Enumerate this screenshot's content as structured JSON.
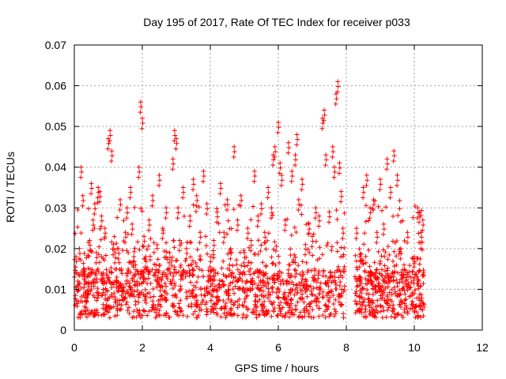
{
  "chart_data": {
    "type": "scatter",
    "title": "Day 195 of 2017, Rate Of TEC Index for receiver p033",
    "xlabel": "GPS time / hours",
    "ylabel": "ROTI / TECUs",
    "xlim": [
      0,
      12
    ],
    "ylim": [
      0,
      0.07
    ],
    "x_ticks": [
      "0",
      "2",
      "4",
      "6",
      "8",
      "10",
      "12"
    ],
    "y_ticks": [
      "0",
      "0.01",
      "0.02",
      "0.03",
      "0.04",
      "0.05",
      "0.06",
      "0.07"
    ],
    "grid": true,
    "marker": "plus",
    "color": "#ff0000",
    "series": [
      {
        "values": [
          [
            0.05,
            0.018
          ],
          [
            0.1,
            0.012
          ],
          [
            0.15,
            0.02
          ],
          [
            0.2,
            0.04
          ],
          [
            0.25,
            0.033
          ],
          [
            0.3,
            0.015
          ],
          [
            0.35,
            0.008
          ],
          [
            0.45,
            0.022
          ],
          [
            0.5,
            0.036
          ],
          [
            0.55,
            0.027
          ],
          [
            0.6,
            0.031
          ],
          [
            0.65,
            0.019
          ],
          [
            0.7,
            0.035
          ],
          [
            0.75,
            0.034
          ],
          [
            0.8,
            0.028
          ],
          [
            0.85,
            0.014
          ],
          [
            0.9,
            0.025
          ],
          [
            1.0,
            0.047
          ],
          [
            1.05,
            0.049
          ],
          [
            1.1,
            0.044
          ],
          [
            1.15,
            0.021
          ],
          [
            1.2,
            0.019
          ],
          [
            1.25,
            0.013
          ],
          [
            1.3,
            0.02
          ],
          [
            1.35,
            0.032
          ],
          [
            1.4,
            0.011
          ],
          [
            1.5,
            0.024
          ],
          [
            1.55,
            0.03
          ],
          [
            1.65,
            0.035
          ],
          [
            1.7,
            0.026
          ],
          [
            1.75,
            0.018
          ],
          [
            1.8,
            0.016
          ],
          [
            1.9,
            0.04
          ],
          [
            1.95,
            0.056
          ],
          [
            2.0,
            0.052
          ],
          [
            2.05,
            0.023
          ],
          [
            2.1,
            0.018
          ],
          [
            2.2,
            0.027
          ],
          [
            2.3,
            0.033
          ],
          [
            2.4,
            0.016
          ],
          [
            2.5,
            0.038
          ],
          [
            2.6,
            0.025
          ],
          [
            2.7,
            0.03
          ],
          [
            2.8,
            0.019
          ],
          [
            2.9,
            0.042
          ],
          [
            2.95,
            0.049
          ],
          [
            3.0,
            0.047
          ],
          [
            3.05,
            0.03
          ],
          [
            3.1,
            0.022
          ],
          [
            3.2,
            0.035
          ],
          [
            3.3,
            0.02
          ],
          [
            3.4,
            0.028
          ],
          [
            3.5,
            0.037
          ],
          [
            3.6,
            0.033
          ],
          [
            3.7,
            0.024
          ],
          [
            3.8,
            0.039
          ],
          [
            3.9,
            0.031
          ],
          [
            4.0,
            0.018
          ],
          [
            4.1,
            0.022
          ],
          [
            4.2,
            0.029
          ],
          [
            4.3,
            0.036
          ],
          [
            4.4,
            0.024
          ],
          [
            4.5,
            0.032
          ],
          [
            4.6,
            0.02
          ],
          [
            4.7,
            0.045
          ],
          [
            4.8,
            0.027
          ],
          [
            4.9,
            0.033
          ],
          [
            5.0,
            0.019
          ],
          [
            5.1,
            0.025
          ],
          [
            5.2,
            0.022
          ],
          [
            5.3,
            0.039
          ],
          [
            5.4,
            0.028
          ],
          [
            5.5,
            0.031
          ],
          [
            5.6,
            0.024
          ],
          [
            5.7,
            0.035
          ],
          [
            5.8,
            0.03
          ],
          [
            5.85,
            0.043
          ],
          [
            5.9,
            0.045
          ],
          [
            6.0,
            0.051
          ],
          [
            6.05,
            0.041
          ],
          [
            6.1,
            0.038
          ],
          [
            6.2,
            0.027
          ],
          [
            6.3,
            0.046
          ],
          [
            6.4,
            0.039
          ],
          [
            6.5,
            0.043
          ],
          [
            6.55,
            0.048
          ],
          [
            6.6,
            0.032
          ],
          [
            6.7,
            0.037
          ],
          [
            6.8,
            0.021
          ],
          [
            6.9,
            0.026
          ],
          [
            7.0,
            0.023
          ],
          [
            7.1,
            0.03
          ],
          [
            7.2,
            0.028
          ],
          [
            7.3,
            0.052
          ],
          [
            7.35,
            0.054
          ],
          [
            7.4,
            0.043
          ],
          [
            7.5,
            0.029
          ],
          [
            7.6,
            0.045
          ],
          [
            7.65,
            0.04
          ],
          [
            7.7,
            0.058
          ],
          [
            7.75,
            0.061
          ],
          [
            7.8,
            0.041
          ],
          [
            7.85,
            0.034
          ],
          [
            7.9,
            0.025
          ],
          [
            8.3,
            0.025
          ],
          [
            8.4,
            0.018
          ],
          [
            8.5,
            0.035
          ],
          [
            8.6,
            0.038
          ],
          [
            8.7,
            0.03
          ],
          [
            8.8,
            0.032
          ],
          [
            8.9,
            0.024
          ],
          [
            9.0,
            0.037
          ],
          [
            9.1,
            0.026
          ],
          [
            9.2,
            0.042
          ],
          [
            9.3,
            0.035
          ],
          [
            9.4,
            0.044
          ],
          [
            9.5,
            0.038
          ],
          [
            9.6,
            0.02
          ],
          [
            9.7,
            0.016
          ],
          [
            9.8,
            0.024
          ],
          [
            9.9,
            0.013
          ],
          [
            10.0,
            0.018
          ],
          [
            10.1,
            0.03
          ],
          [
            10.15,
            0.029
          ],
          [
            10.2,
            0.024
          ],
          [
            10.25,
            0.027
          ]
        ]
      }
    ]
  }
}
